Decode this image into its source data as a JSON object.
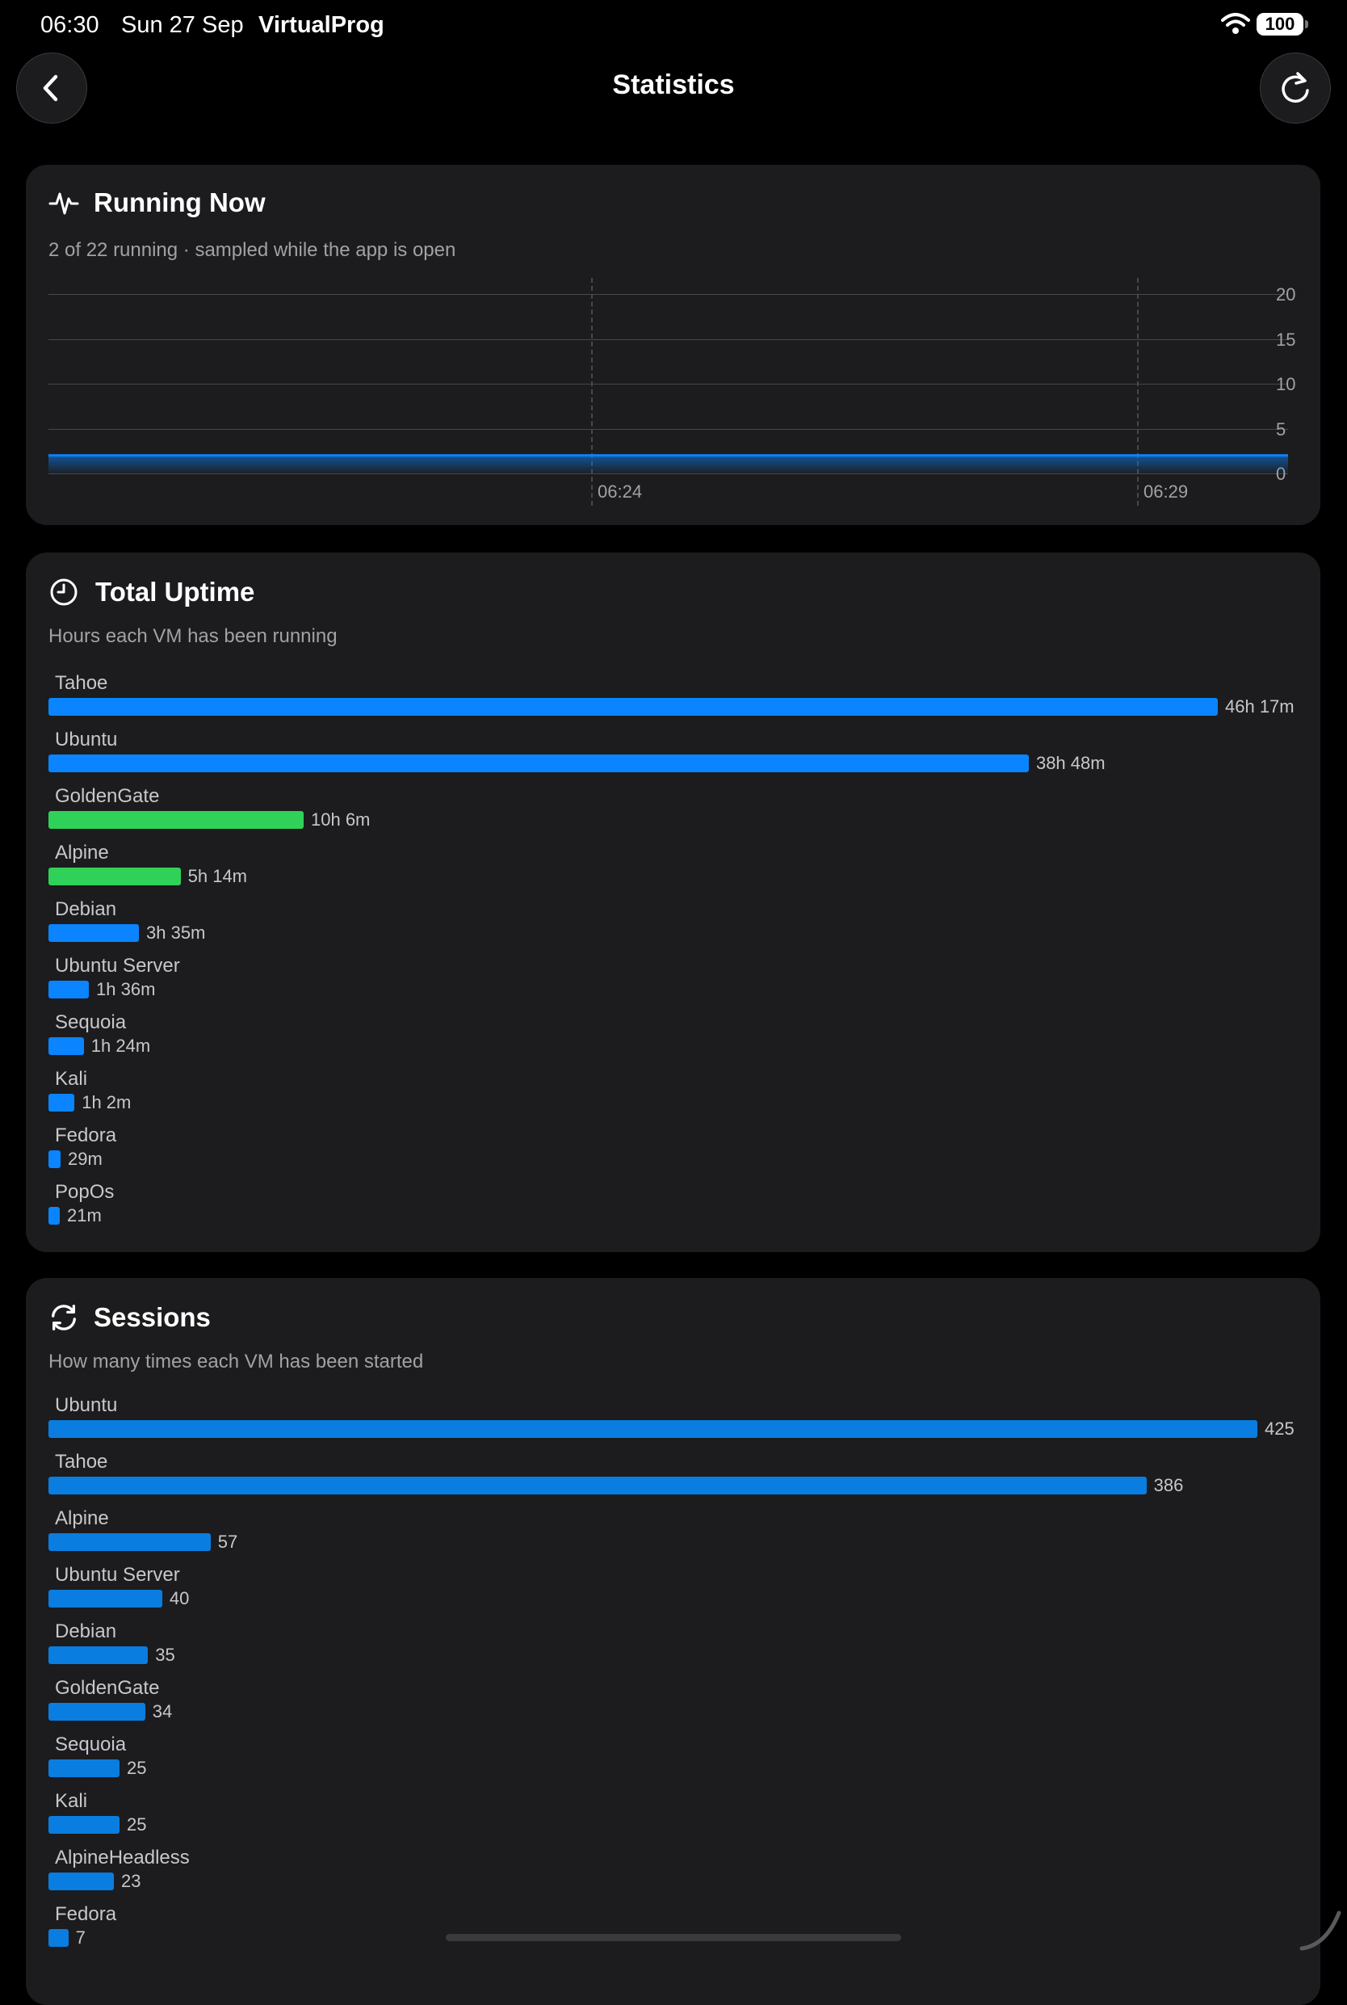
{
  "status_bar": {
    "time": "06:30",
    "date": "Sun 27 Sep",
    "app": "VirtualProg",
    "battery": "100"
  },
  "nav": {
    "title": "Statistics",
    "back_icon": "chevron-left-icon",
    "refresh_icon": "refresh-icon"
  },
  "running_now": {
    "title": "Running Now",
    "icon": "activity-pulse-icon",
    "subtitle": "2 of 22 running · sampled while the app is open",
    "chart_data": {
      "type": "area",
      "title": "Running Now",
      "ylim": [
        0,
        20
      ],
      "yticks": [
        "20",
        "15",
        "10",
        "5",
        "0"
      ],
      "xticks": [
        "06:24",
        "06:29"
      ],
      "series": [
        {
          "values": [
            2,
            2,
            2,
            2,
            2
          ]
        }
      ],
      "grid": true,
      "color": "#0a84ff"
    }
  },
  "total_uptime": {
    "title": "Total Uptime",
    "icon": "clock-icon",
    "subtitle": "Hours each VM has been running",
    "chart_data": {
      "type": "bar",
      "orientation": "horizontal",
      "unit": "hours",
      "items": [
        {
          "name": "Tahoe",
          "value": 46.28,
          "label": "46h 17m",
          "color": "#0a84ff"
        },
        {
          "name": "Ubuntu",
          "value": 38.8,
          "label": "38h 48m",
          "color": "#0a84ff"
        },
        {
          "name": "GoldenGate",
          "value": 10.1,
          "label": "10h 6m",
          "color": "#30d158"
        },
        {
          "name": "Alpine",
          "value": 5.23,
          "label": "5h 14m",
          "color": "#30d158"
        },
        {
          "name": "Debian",
          "value": 3.58,
          "label": "3h 35m",
          "color": "#0a84ff"
        },
        {
          "name": "Ubuntu Server",
          "value": 1.6,
          "label": "1h 36m",
          "color": "#0a84ff"
        },
        {
          "name": "Sequoia",
          "value": 1.4,
          "label": "1h 24m",
          "color": "#0a84ff"
        },
        {
          "name": "Kali",
          "value": 1.03,
          "label": "1h 2m",
          "color": "#0a84ff"
        },
        {
          "name": "Fedora",
          "value": 0.48,
          "label": "29m",
          "color": "#0a84ff"
        },
        {
          "name": "PopOs",
          "value": 0.35,
          "label": "21m",
          "color": "#0a84ff"
        }
      ]
    }
  },
  "sessions": {
    "title": "Sessions",
    "icon": "sync-arrows-icon",
    "subtitle": "How many times each VM has been started",
    "chart_data": {
      "type": "bar",
      "orientation": "horizontal",
      "items": [
        {
          "name": "Ubuntu",
          "value": 425,
          "label": "425",
          "color": "#0a7de0"
        },
        {
          "name": "Tahoe",
          "value": 386,
          "label": "386",
          "color": "#0a7de0"
        },
        {
          "name": "Alpine",
          "value": 57,
          "label": "57",
          "color": "#0a7de0"
        },
        {
          "name": "Ubuntu Server",
          "value": 40,
          "label": "40",
          "color": "#0a7de0"
        },
        {
          "name": "Debian",
          "value": 35,
          "label": "35",
          "color": "#0a7de0"
        },
        {
          "name": "GoldenGate",
          "value": 34,
          "label": "34",
          "color": "#0a7de0"
        },
        {
          "name": "Sequoia",
          "value": 25,
          "label": "25",
          "color": "#0a7de0"
        },
        {
          "name": "Kali",
          "value": 25,
          "label": "25",
          "color": "#0a7de0"
        },
        {
          "name": "AlpineHeadless",
          "value": 23,
          "label": "23",
          "color": "#0a7de0"
        },
        {
          "name": "Fedora",
          "value": 7,
          "label": "7",
          "color": "#0a7de0"
        }
      ]
    }
  }
}
